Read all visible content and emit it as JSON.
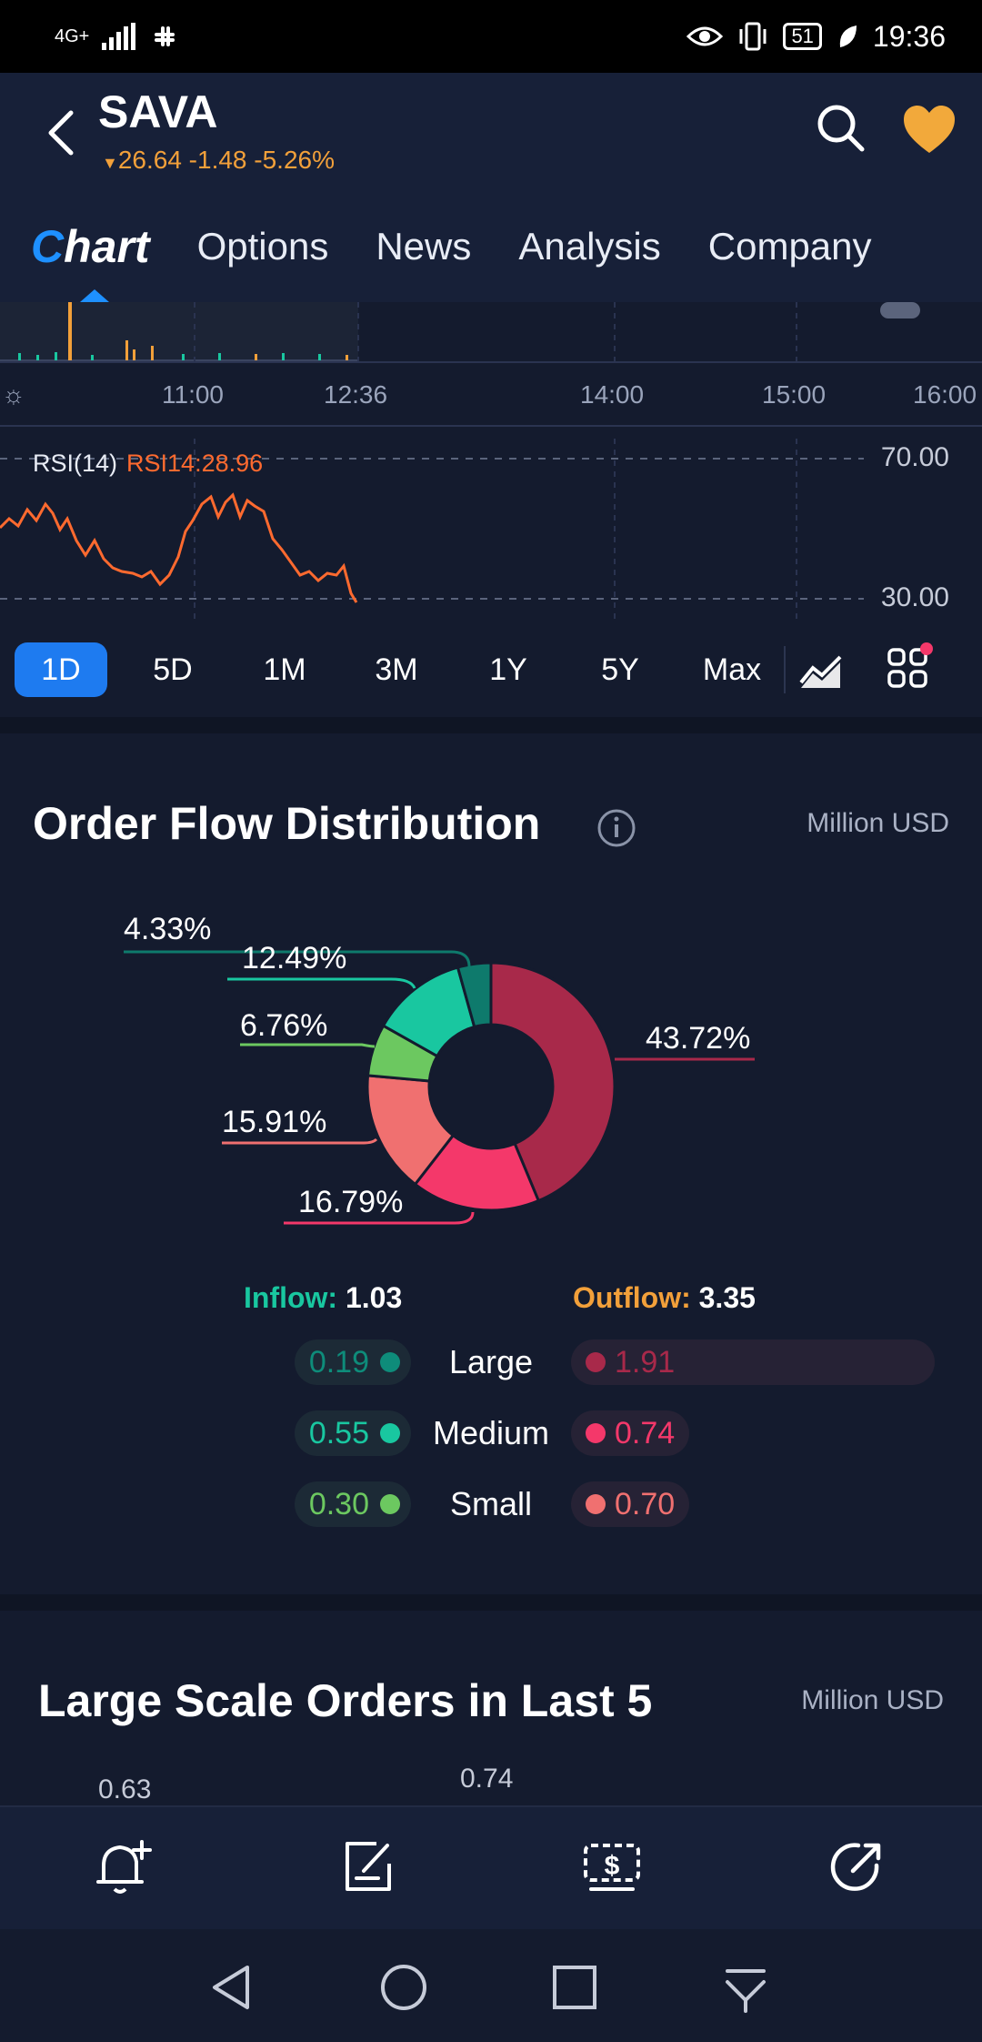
{
  "status_bar": {
    "network": "4G+",
    "battery": "51",
    "time": "19:36"
  },
  "header": {
    "ticker": "SAVA",
    "quote": "26.64 -1.48 -5.26%",
    "quote_color": "#f2a03a"
  },
  "tabs": [
    "Chart",
    "Options",
    "News",
    "Analysis",
    "Company"
  ],
  "chart": {
    "time_labels": [
      "11:00",
      "12:36",
      "14:00",
      "15:00",
      "16:00"
    ],
    "rsi_label": "RSI(14)",
    "rsi_value": "RSI14:28.96",
    "rsi_high": "70.00",
    "rsi_low": "30.00"
  },
  "periods": [
    "1D",
    "5D",
    "1M",
    "3M",
    "1Y",
    "5Y",
    "Max"
  ],
  "order_flow": {
    "title": "Order Flow Distribution",
    "unit": "Million USD",
    "inflow_label": "Inflow:",
    "inflow_value": "1.03",
    "outflow_label": "Outflow:",
    "outflow_value": "3.35",
    "rows": [
      {
        "size": "Large",
        "in": "0.19",
        "out": "1.91"
      },
      {
        "size": "Medium",
        "in": "0.55",
        "out": "0.74"
      },
      {
        "size": "Small",
        "in": "0.30",
        "out": "0.70"
      }
    ],
    "colors": {
      "large_in": "#0e7a6c",
      "medium_in": "#19c7a0",
      "small_in": "#6cc860",
      "large_out": "#a8294a",
      "medium_out": "#f4386a",
      "small_out": "#f07070"
    }
  },
  "chart_data": {
    "type": "pie",
    "categories": [
      "Large Outflow",
      "Medium Outflow",
      "Small Outflow",
      "Small Inflow",
      "Medium Inflow",
      "Large Inflow"
    ],
    "values": [
      43.72,
      16.79,
      15.91,
      6.76,
      12.49,
      4.33
    ],
    "labels": [
      "43.72%",
      "16.79%",
      "15.91%",
      "6.76%",
      "12.49%",
      "4.33%"
    ]
  },
  "large_orders": {
    "title": "Large Scale Orders in Last 5",
    "unit": "Million USD",
    "values": [
      "0.63",
      "0.74"
    ]
  }
}
